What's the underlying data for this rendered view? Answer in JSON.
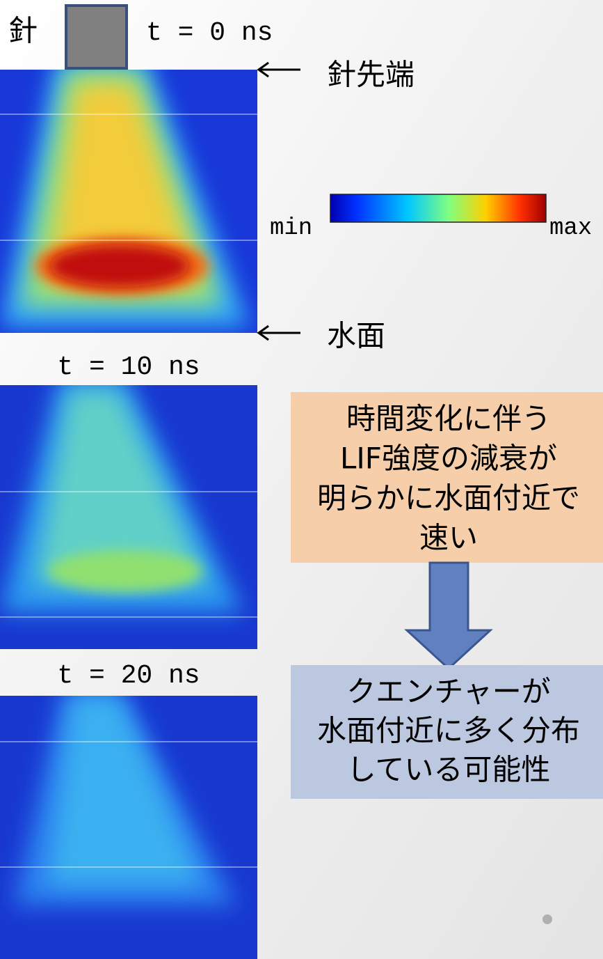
{
  "needle_label": "針",
  "tip_label": "針先端",
  "surface_label": "水面",
  "frames": [
    {
      "time_label": "t = 0 ns"
    },
    {
      "time_label": "t = 10 ns"
    },
    {
      "time_label": "t = 20 ns"
    }
  ],
  "colorbar": {
    "min_label": "min",
    "max_label": "max"
  },
  "observation": {
    "lines": [
      "時間変化に伴う",
      "LIF強度の減衰が",
      "明らかに水面付近で",
      "速い"
    ]
  },
  "conclusion": {
    "lines": [
      "クエンチャーが",
      "水面付近に多く分布",
      "している可能性"
    ]
  }
}
